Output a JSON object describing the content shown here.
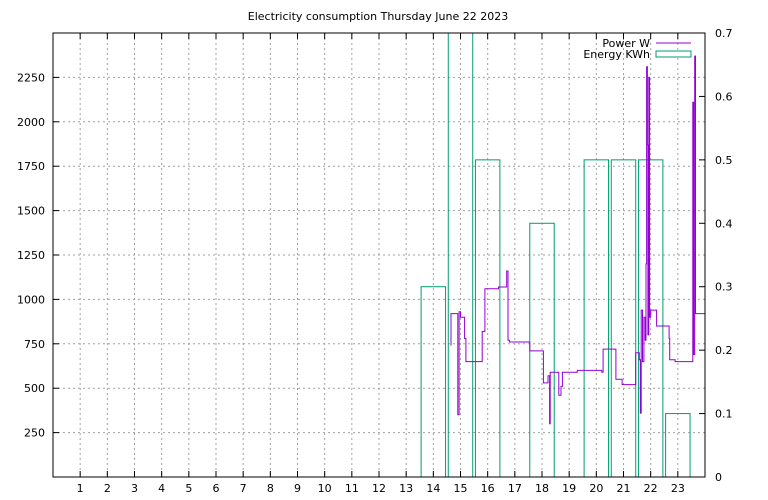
{
  "chart_data": {
    "type": "line",
    "title": "Electricity consumption Thursday June 22 2023",
    "xlabel": "",
    "ylabel": "",
    "y2label": "",
    "x_ticks": [
      1,
      2,
      3,
      4,
      5,
      6,
      7,
      8,
      9,
      10,
      11,
      12,
      13,
      14,
      15,
      16,
      17,
      18,
      19,
      20,
      21,
      22,
      23
    ],
    "xlim": [
      0,
      24
    ],
    "ylim": [
      0,
      2500
    ],
    "y_ticks": [
      250,
      500,
      750,
      1000,
      1250,
      1500,
      1750,
      2000,
      2250
    ],
    "y2lim": [
      0,
      0.7
    ],
    "y2_ticks": [
      0,
      0.1,
      0.2,
      0.3,
      0.4,
      0.5,
      0.6,
      0.7
    ],
    "grid": true,
    "legend_position": "top-right",
    "series": [
      {
        "name": "Power W",
        "color": "#9400d3",
        "axis": "left",
        "step": true,
        "points": [
          [
            14.65,
            740
          ],
          [
            14.65,
            920
          ],
          [
            14.9,
            920
          ],
          [
            14.9,
            350
          ],
          [
            14.95,
            930
          ],
          [
            15.0,
            900
          ],
          [
            15.15,
            900
          ],
          [
            15.15,
            780
          ],
          [
            15.2,
            650
          ],
          [
            15.5,
            650
          ],
          [
            15.8,
            650
          ],
          [
            15.8,
            820
          ],
          [
            15.9,
            1060
          ],
          [
            16.35,
            1060
          ],
          [
            16.4,
            1070
          ],
          [
            16.65,
            1070
          ],
          [
            16.7,
            1160
          ],
          [
            16.75,
            770
          ],
          [
            16.8,
            760
          ],
          [
            17.5,
            760
          ],
          [
            17.55,
            710
          ],
          [
            18.0,
            710
          ],
          [
            18.05,
            530
          ],
          [
            18.2,
            530
          ],
          [
            18.22,
            570
          ],
          [
            18.28,
            300
          ],
          [
            18.3,
            590
          ],
          [
            18.6,
            590
          ],
          [
            18.62,
            460
          ],
          [
            18.7,
            510
          ],
          [
            18.75,
            590
          ],
          [
            19.25,
            590
          ],
          [
            19.3,
            600
          ],
          [
            20.15,
            600
          ],
          [
            20.2,
            590
          ],
          [
            20.25,
            720
          ],
          [
            20.7,
            720
          ],
          [
            20.72,
            550
          ],
          [
            20.9,
            550
          ],
          [
            20.95,
            520
          ],
          [
            21.4,
            520
          ],
          [
            21.45,
            700
          ],
          [
            21.55,
            700
          ],
          [
            21.58,
            660
          ],
          [
            21.62,
            360
          ],
          [
            21.65,
            940
          ],
          [
            21.7,
            650
          ],
          [
            21.75,
            900
          ],
          [
            21.8,
            770
          ],
          [
            21.83,
            1200
          ],
          [
            21.85,
            2310
          ],
          [
            21.88,
            1870
          ],
          [
            21.9,
            800
          ],
          [
            21.93,
            2250
          ],
          [
            21.96,
            900
          ],
          [
            22.0,
            940
          ],
          [
            22.2,
            940
          ],
          [
            22.22,
            850
          ],
          [
            22.65,
            850
          ],
          [
            22.68,
            780
          ],
          [
            22.7,
            660
          ],
          [
            22.85,
            660
          ],
          [
            22.9,
            650
          ],
          [
            23.5,
            650
          ],
          [
            23.55,
            2110
          ],
          [
            23.58,
            690
          ],
          [
            23.62,
            2370
          ],
          [
            23.65,
            920
          ],
          [
            24.0,
            920
          ]
        ]
      },
      {
        "name": "Energy KWh",
        "color": "#009e73",
        "axis": "right",
        "type": "bar",
        "bars": [
          {
            "x": 14,
            "value": 0.3
          },
          {
            "x": 15,
            "value": 0.7
          },
          {
            "x": 16,
            "value": 0.5
          },
          {
            "x": 18,
            "value": 0.4
          },
          {
            "x": 20,
            "value": 0.5
          },
          {
            "x": 21,
            "value": 0.5
          },
          {
            "x": 22,
            "value": 0.5
          },
          {
            "x": 23,
            "value": 0.1
          }
        ]
      }
    ]
  }
}
